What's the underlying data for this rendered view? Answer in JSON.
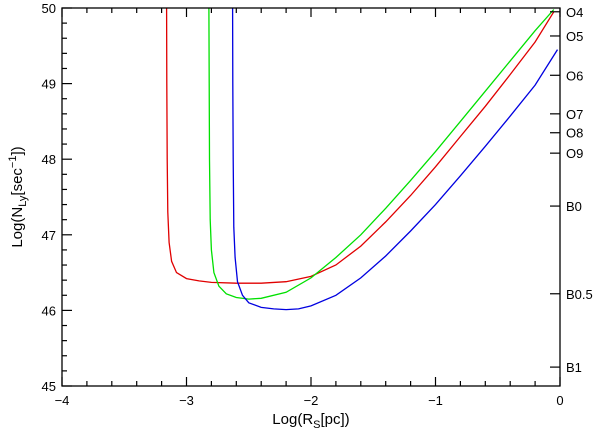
{
  "chart_data": {
    "type": "line",
    "xlim": [
      -4,
      0
    ],
    "ylim": [
      45,
      50
    ],
    "x_ticks": [
      -4,
      -3,
      -2,
      -1,
      0
    ],
    "x_tick_labels": [
      "−4",
      "−3",
      "−2",
      "−1",
      "0"
    ],
    "y_ticks": [
      45,
      46,
      47,
      48,
      49,
      50
    ],
    "y_tick_labels": [
      "45",
      "46",
      "47",
      "48",
      "49",
      "50"
    ],
    "xlabel": {
      "pre": "Log(R",
      "sub": "S",
      "post": "[pc])"
    },
    "ylabel": {
      "pre": "Log(N",
      "sub": "Ly",
      "mid": "[sec",
      "sup": "−1",
      "post": "])"
    },
    "right_axis_labels": [
      {
        "label": "O4",
        "y": 49.95
      },
      {
        "label": "O5",
        "y": 49.63
      },
      {
        "label": "O6",
        "y": 49.11
      },
      {
        "label": "O7",
        "y": 48.6
      },
      {
        "label": "O8",
        "y": 48.35
      },
      {
        "label": "O9",
        "y": 48.08
      },
      {
        "label": "B0",
        "y": 47.38
      },
      {
        "label": "B0.5",
        "y": 46.22
      },
      {
        "label": "B1",
        "y": 45.25
      }
    ],
    "series": [
      {
        "color": "#e00000",
        "x": [
          -3.16,
          -3.158,
          -3.155,
          -3.15,
          -3.14,
          -3.12,
          -3.08,
          -3.0,
          -2.9,
          -2.8,
          -2.6,
          -2.4,
          -2.2,
          -2.0,
          -1.8,
          -1.6,
          -1.4,
          -1.2,
          -1.0,
          -0.8,
          -0.6,
          -0.4,
          -0.2,
          -0.05
        ],
        "y": [
          50.0,
          49.0,
          48.0,
          47.3,
          46.9,
          46.65,
          46.5,
          46.42,
          46.39,
          46.37,
          46.36,
          46.36,
          46.38,
          46.45,
          46.6,
          46.85,
          47.17,
          47.52,
          47.9,
          48.3,
          48.7,
          49.12,
          49.55,
          49.95
        ]
      },
      {
        "color": "#00e000",
        "x": [
          -2.82,
          -2.818,
          -2.815,
          -2.81,
          -2.8,
          -2.78,
          -2.74,
          -2.68,
          -2.6,
          -2.5,
          -2.4,
          -2.2,
          -2.0,
          -1.8,
          -1.6,
          -1.4,
          -1.2,
          -1.0,
          -0.8,
          -0.6,
          -0.4,
          -0.2,
          -0.05
        ],
        "y": [
          50.0,
          49.0,
          48.0,
          47.2,
          46.8,
          46.5,
          46.32,
          46.22,
          46.17,
          46.15,
          46.16,
          46.24,
          46.43,
          46.7,
          47.0,
          47.35,
          47.72,
          48.1,
          48.5,
          48.9,
          49.3,
          49.7,
          49.98
        ]
      },
      {
        "color": "#0000e0",
        "x": [
          -2.63,
          -2.628,
          -2.625,
          -2.62,
          -2.61,
          -2.59,
          -2.55,
          -2.5,
          -2.4,
          -2.3,
          -2.2,
          -2.1,
          -2.0,
          -1.8,
          -1.6,
          -1.4,
          -1.2,
          -1.0,
          -0.8,
          -0.6,
          -0.4,
          -0.2,
          -0.02
        ],
        "y": [
          50.0,
          49.0,
          48.0,
          47.1,
          46.7,
          46.38,
          46.2,
          46.1,
          46.04,
          46.02,
          46.01,
          46.02,
          46.06,
          46.2,
          46.43,
          46.72,
          47.05,
          47.4,
          47.78,
          48.17,
          48.57,
          48.98,
          49.45
        ]
      }
    ]
  }
}
